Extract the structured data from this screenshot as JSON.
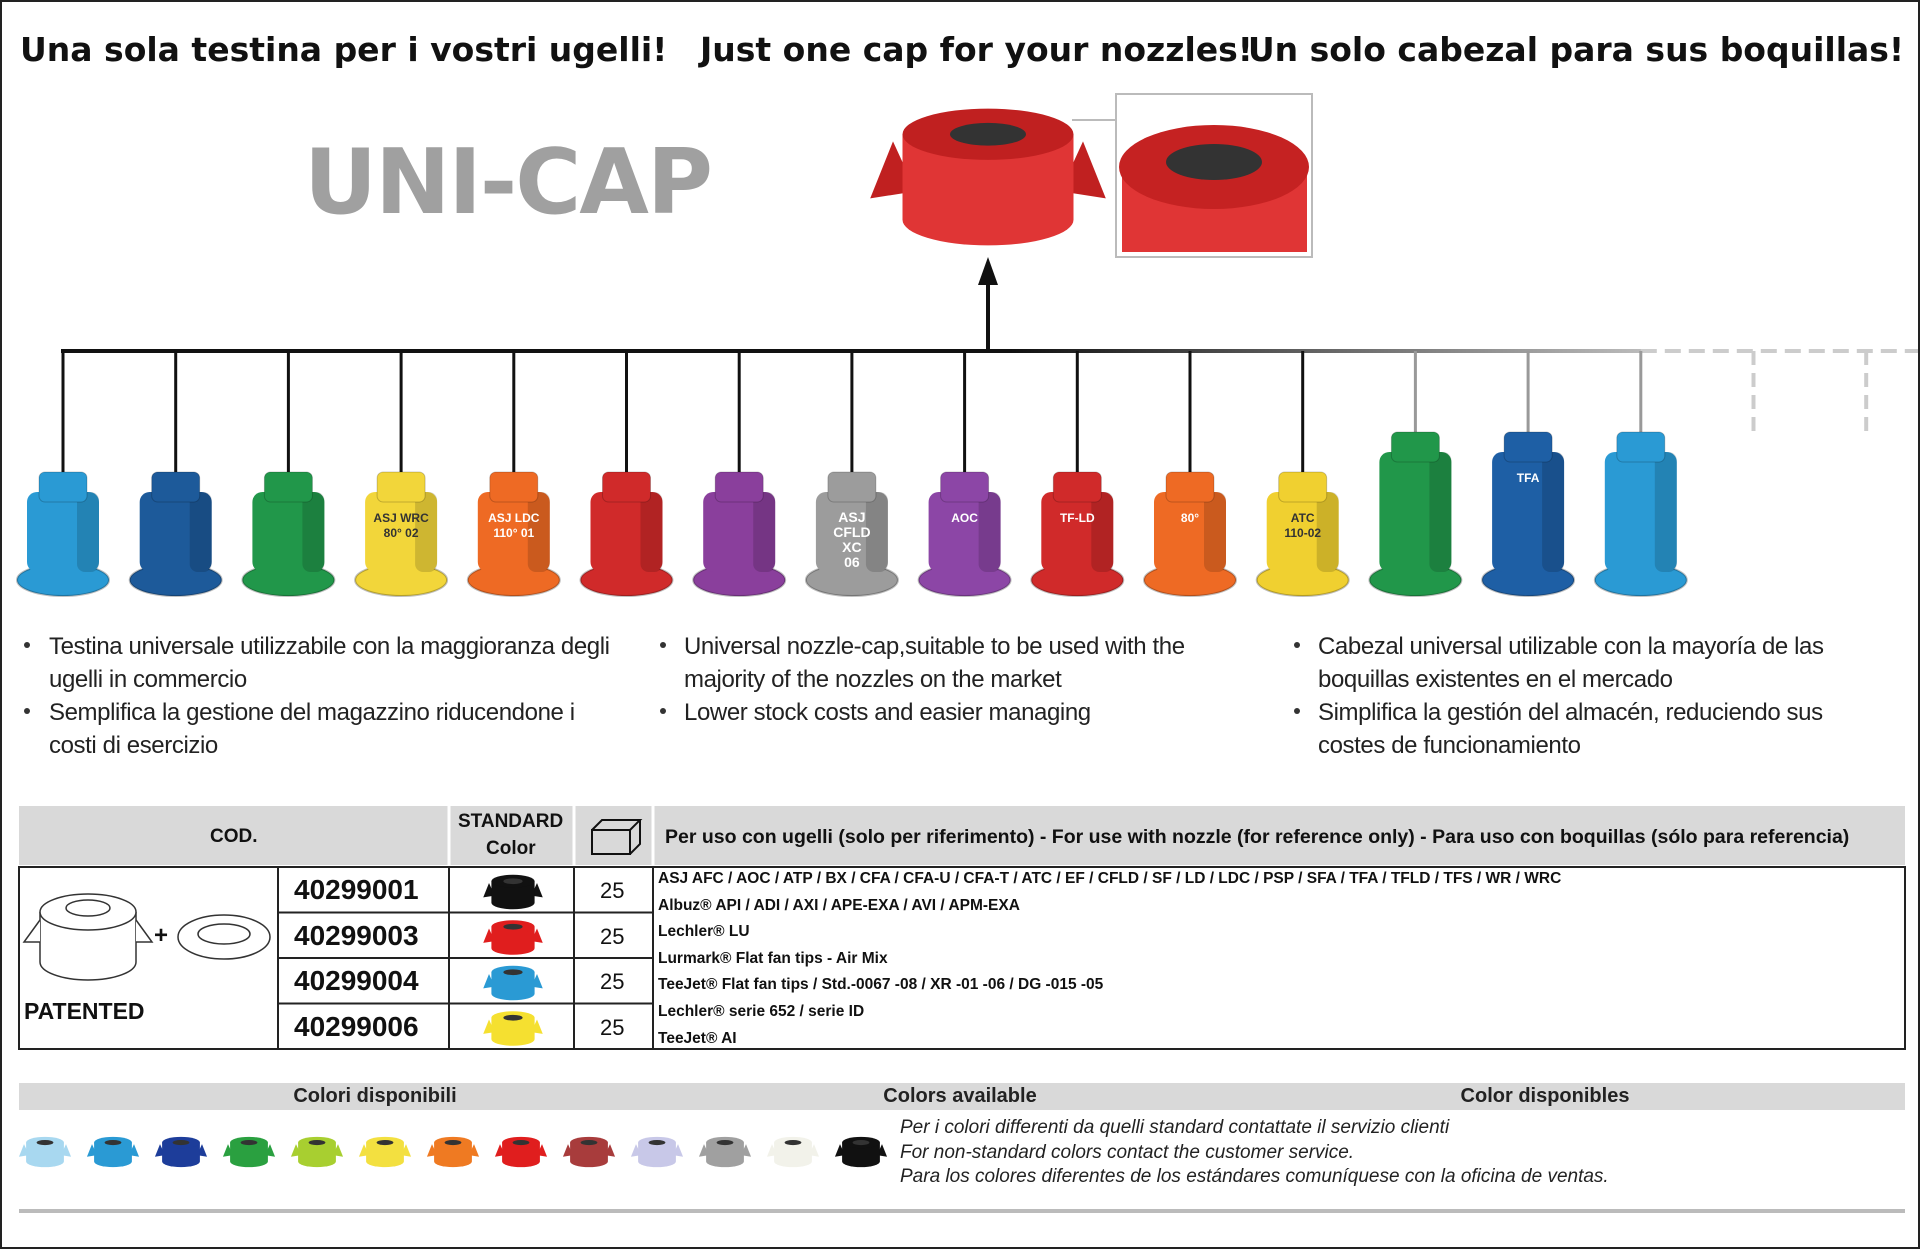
{
  "headings": [
    "Una sola testina per i vostri ugelli!",
    "Just one cap for your nozzles!",
    "Un solo cabezal para sus boquillas!"
  ],
  "product_name": "UNI-CAP",
  "nozzles": [
    {
      "color": "#2a9ad4"
    },
    {
      "color": "#1d5a9a"
    },
    {
      "color": "#21974a"
    },
    {
      "color": "#f2d63a",
      "labels": [
        "ASJ WRC",
        "80° 02"
      ]
    },
    {
      "color": "#ee6a24",
      "labels": [
        "ASJ LDC",
        "110° 01"
      ]
    },
    {
      "color": "#d02a2a"
    },
    {
      "color": "#8a3f9c"
    },
    {
      "color": "#9c9c9c",
      "labels": [
        "ASJ",
        "CFLD",
        "XC",
        "06"
      ]
    },
    {
      "color": "#8c46a6",
      "labels": [
        "AOC"
      ]
    },
    {
      "color": "#d02a2a",
      "labels": [
        "TF-LD"
      ]
    },
    {
      "color": "#ee6a24",
      "labels": [
        "80°"
      ]
    },
    {
      "color": "#f0d030",
      "labels": [
        "ATC",
        "110-02"
      ]
    },
    {
      "color": "#21974a"
    },
    {
      "color": "#1e5fa5",
      "labels": [
        "TFA"
      ]
    },
    {
      "color": "#2a9ad4"
    }
  ],
  "bullets": [
    [
      "Testina universale utilizzabile con la maggioranza degli ugelli in commercio",
      "Semplifica la gestione del magazzino riducendone i costi di esercizio"
    ],
    [
      "Universal nozzle-cap,suitable to be used with the majority of the nozzles on the market",
      "Lower stock costs and easier managing"
    ],
    [
      "Cabezal universal utilizable con la mayoría de las boquillas existentes en el mercado",
      "Simplifica la gestión del almacén, reduciendo sus costes de funcionamiento"
    ]
  ],
  "table": {
    "headers": [
      "COD.",
      [
        "STANDARD",
        "Color"
      ],
      "Per uso con ugelli (solo per riferimento) - For use with nozzle (for reference only) - Para uso con boquillas (sólo para referencia)"
    ],
    "plus": "+",
    "patented": "PATENTED",
    "rows": [
      {
        "code": "40299001",
        "color": "#111111",
        "qty": 25
      },
      {
        "code": "40299003",
        "color": "#e01e1e",
        "qty": 25
      },
      {
        "code": "40299004",
        "color": "#2a9ad4",
        "qty": 25
      },
      {
        "code": "40299006",
        "color": "#f5e030",
        "qty": 25
      }
    ],
    "compatibility": [
      "ASJ AFC / AOC / ATP / BX / CFA / CFA-U / CFA-T / ATC / EF / CFLD / SF / LD / LDC / PSP / SFA / TFA / TFLD / TFS / WR / WRC",
      "Albuz® API / ADI / AXI / APE-EXA / AVI / APM-EXA",
      "Lechler® LU",
      "Lurmark® Flat fan tips - Air Mix",
      "TeeJet® Flat fan tips / Std.-0067 -08 / XR -01 -06 / DG -015 -05",
      "Lechler® serie 652 / serie ID",
      "TeeJet® AI"
    ]
  },
  "colors": {
    "headings": [
      "Colori disponibili",
      "Colors available",
      "Color disponibles"
    ],
    "swatches": [
      "#a8d8f0",
      "#2a9ad4",
      "#1d3d9a",
      "#2aa040",
      "#a8cf30",
      "#f3e040",
      "#ef7a22",
      "#e01e1e",
      "#a83c3c",
      "#c8c8e8",
      "#a0a0a0",
      "#f2f2ea",
      "#111111"
    ],
    "notes": [
      "Per i colori differenti da quelli standard contattate il servizio clienti",
      "For non-standard colors contact the customer service.",
      "Para los colores diferentes de los estándares comuníquese con la oficina de ventas."
    ]
  }
}
